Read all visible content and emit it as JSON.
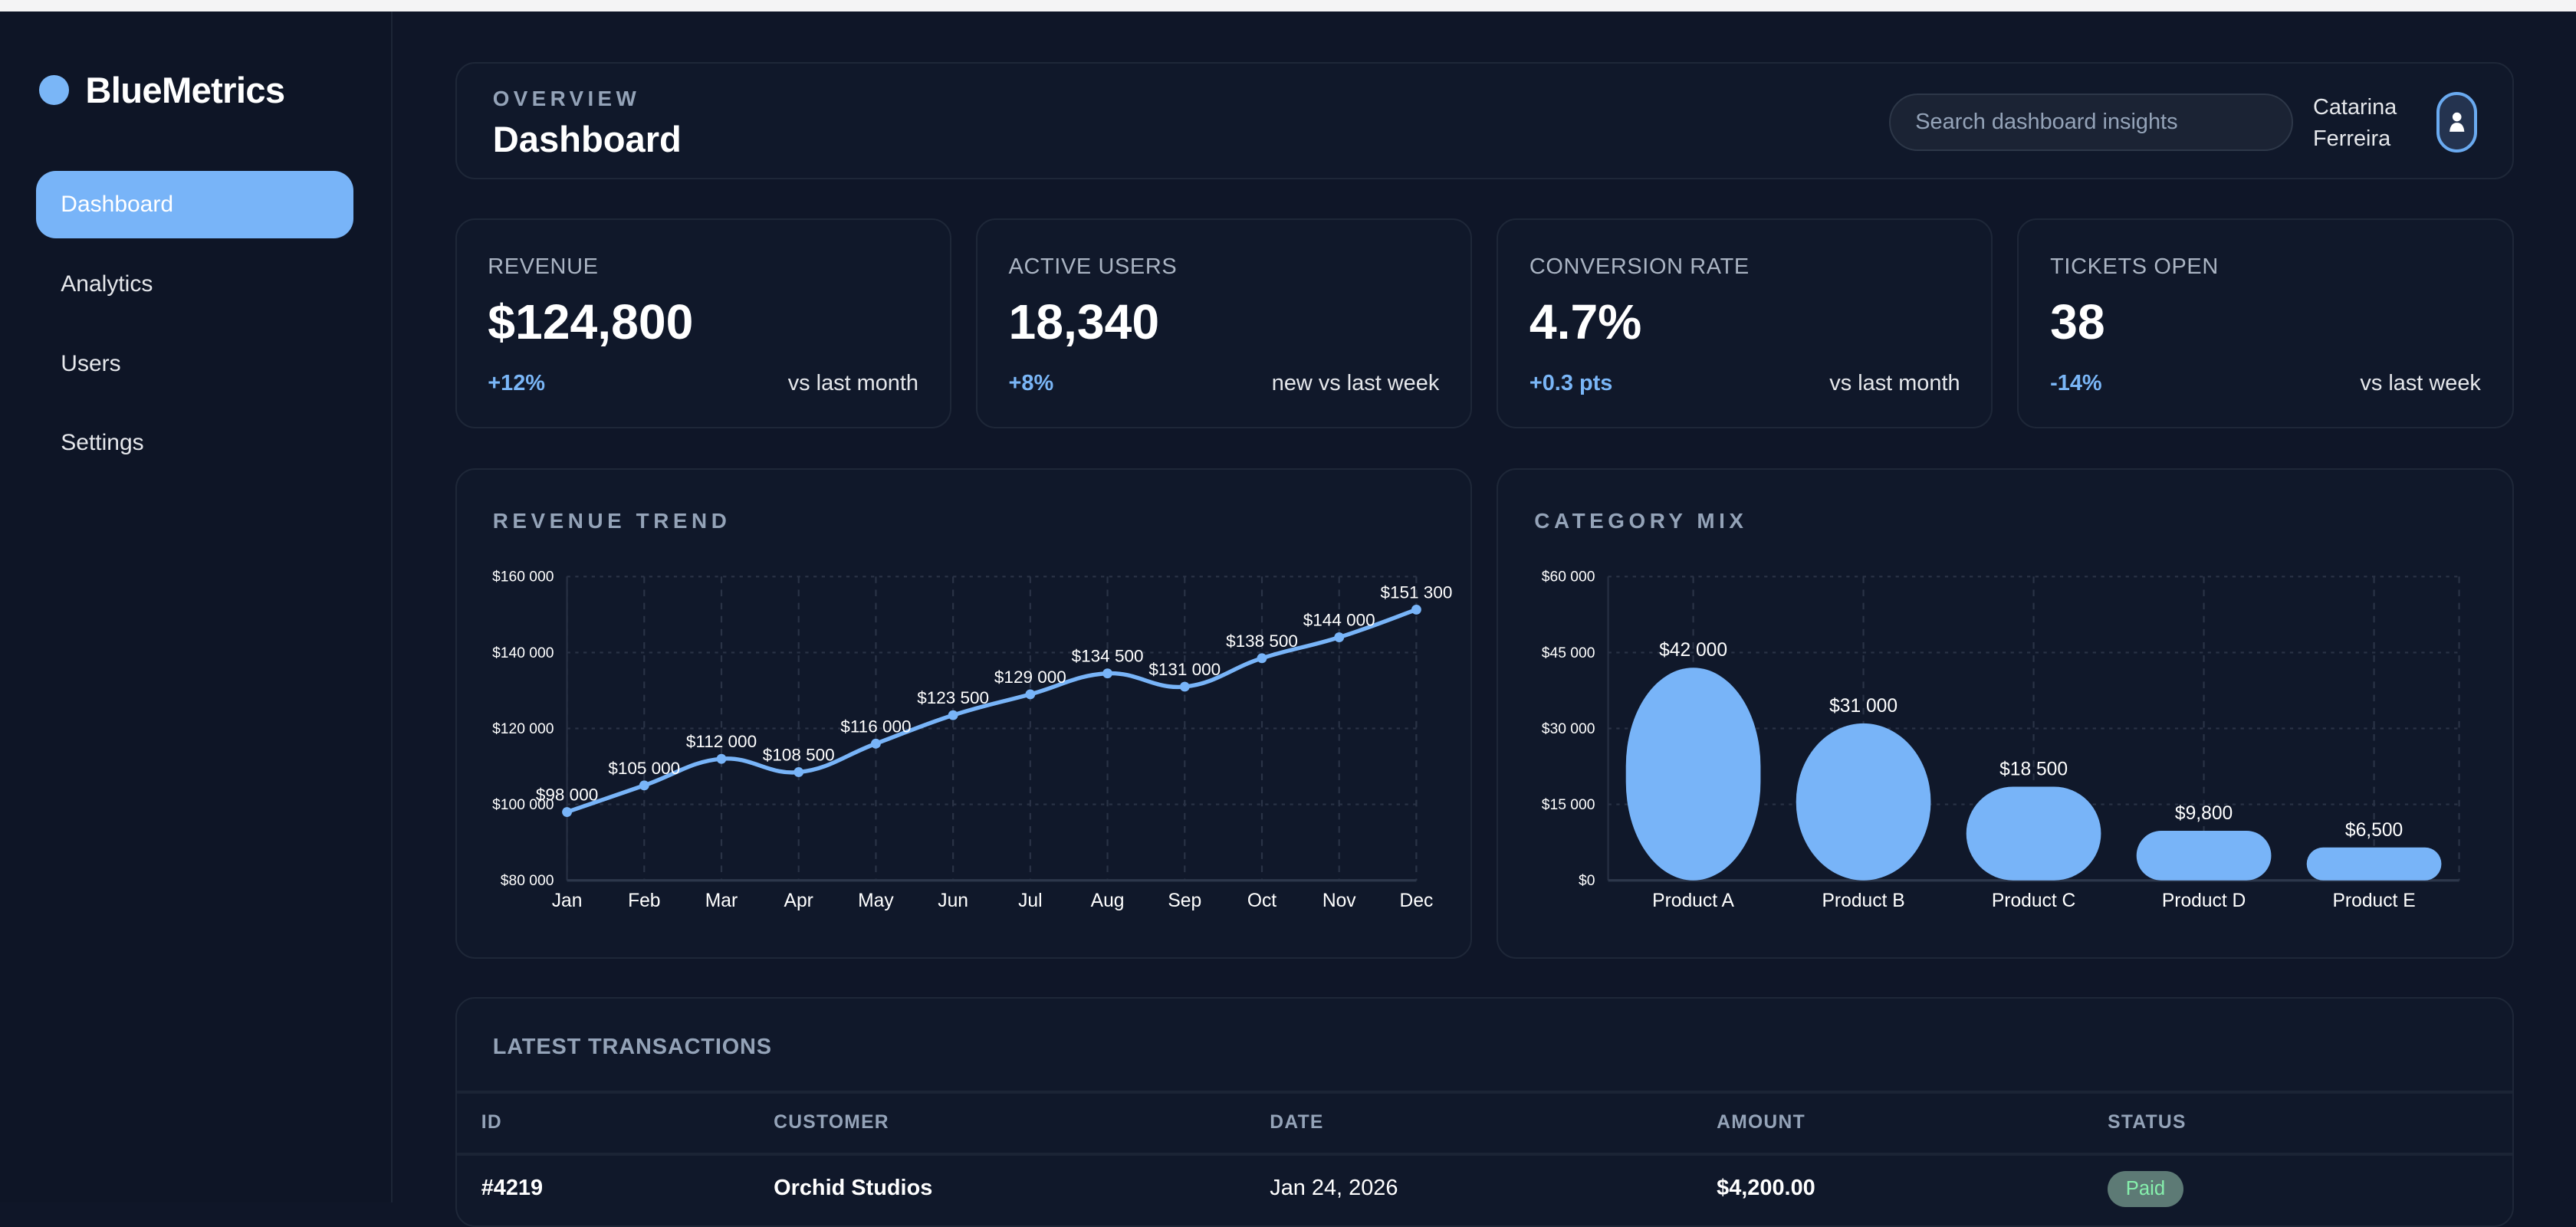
{
  "app": {
    "name": "BlueMetrics"
  },
  "sidebar": {
    "items": [
      {
        "label": "Dashboard",
        "active": true
      },
      {
        "label": "Analytics"
      },
      {
        "label": "Users"
      },
      {
        "label": "Settings"
      }
    ]
  },
  "header": {
    "eyebrow": "OVERVIEW",
    "title": "Dashboard",
    "search_placeholder": "Search dashboard insights",
    "user_first": "Catarina",
    "user_last": "Ferreira"
  },
  "kpis": [
    {
      "label": "REVENUE",
      "value": "$124,800",
      "delta": "+12%",
      "note": "vs last month"
    },
    {
      "label": "ACTIVE USERS",
      "value": "18,340",
      "delta": "+8%",
      "note": "new vs last week"
    },
    {
      "label": "CONVERSION RATE",
      "value": "4.7%",
      "delta": "+0.3 pts",
      "note": "vs last month"
    },
    {
      "label": "TICKETS OPEN",
      "value": "38",
      "delta": "-14%",
      "note": "vs last week"
    }
  ],
  "colors": {
    "accent": "#78b4f8",
    "background": "#0f1628",
    "paid": "#86efac"
  },
  "chart_data": [
    {
      "type": "line",
      "title": "REVENUE TREND",
      "categories": [
        "Jan",
        "Feb",
        "Mar",
        "Apr",
        "May",
        "Jun",
        "Jul",
        "Aug",
        "Sep",
        "Oct",
        "Nov",
        "Dec"
      ],
      "values": [
        98000,
        105000,
        112000,
        108500,
        116000,
        123500,
        129000,
        134500,
        131000,
        138500,
        144000,
        151300
      ],
      "data_labels": [
        "$98 000",
        "$105 000",
        "$112 000",
        "$108 500",
        "$116 000",
        "$123 500",
        "$129 000",
        "$134 500",
        "$131 000",
        "$138 500",
        "$144 000",
        "$151 300"
      ],
      "ylim": [
        80000,
        160000
      ],
      "yticks": [
        80000,
        100000,
        120000,
        140000,
        160000
      ],
      "ytick_labels": [
        "$80 000",
        "$100 000",
        "$120 000",
        "$140 000",
        "$160 000"
      ],
      "grid": true,
      "smooth": true
    },
    {
      "type": "bar",
      "title": "CATEGORY MIX",
      "categories": [
        "Product A",
        "Product B",
        "Product C",
        "Product D",
        "Product E"
      ],
      "values": [
        42000,
        31000,
        18500,
        9800,
        6500
      ],
      "data_labels": [
        "$42 000",
        "$31 000",
        "$18 500",
        "$9,800",
        "$6,500"
      ],
      "ylim": [
        0,
        60000
      ],
      "yticks": [
        0,
        15000,
        30000,
        45000,
        60000
      ],
      "ytick_labels": [
        "$0",
        "$15 000",
        "$30 000",
        "$45 000",
        "$60 000"
      ],
      "grid": true
    }
  ],
  "transactions": {
    "title": "LATEST TRANSACTIONS",
    "columns": [
      "ID",
      "CUSTOMER",
      "DATE",
      "AMOUNT",
      "STATUS"
    ],
    "rows": [
      {
        "id": "#4219",
        "customer": "Orchid Studios",
        "date": "Jan 24, 2026",
        "amount": "$4,200.00",
        "status": "Paid"
      }
    ]
  }
}
